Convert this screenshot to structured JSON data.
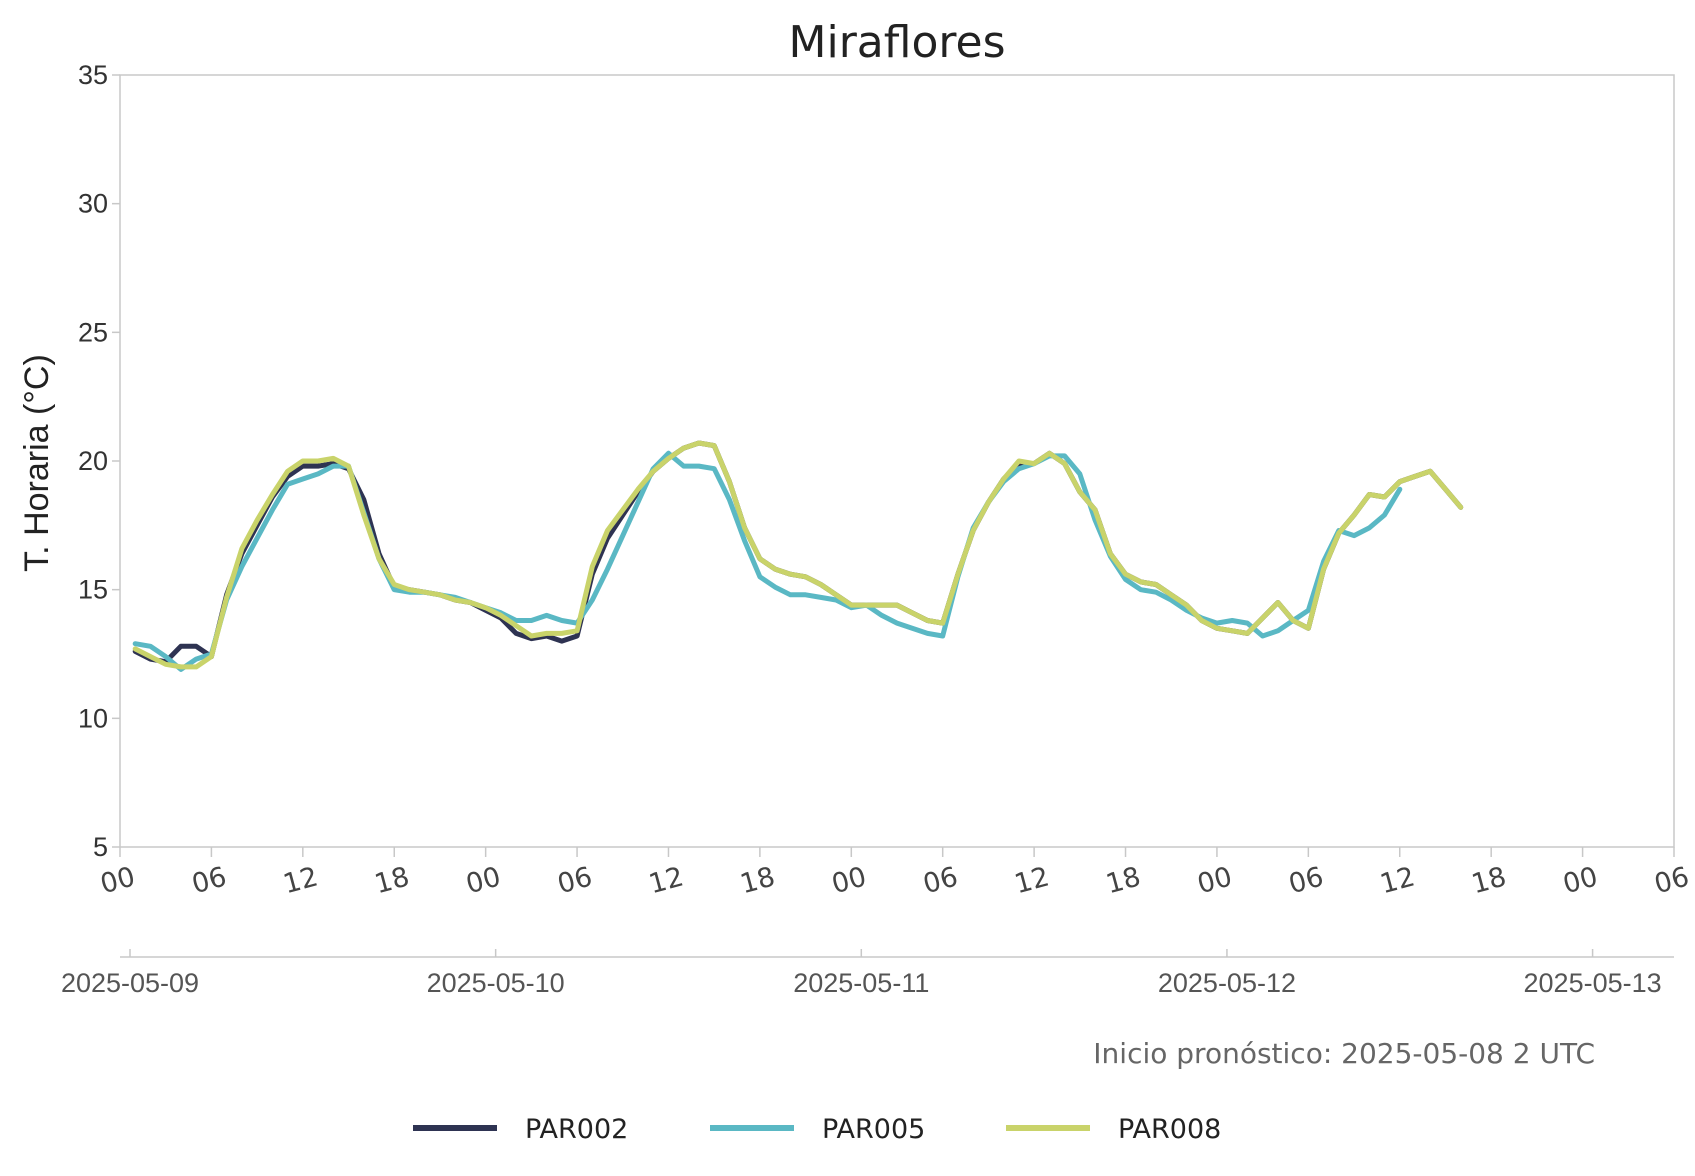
{
  "chart_data": {
    "type": "line",
    "title": "Miraflores",
    "ylabel": "T. Horaria (°C)",
    "ylim": [
      5,
      35
    ],
    "yticks": [
      "5",
      "10",
      "15",
      "20",
      "25",
      "30",
      "35"
    ],
    "xlim": [
      "2025-05-09T00",
      "2025-05-13T06"
    ],
    "x_hour_ticks": [
      "00",
      "06",
      "12",
      "18",
      "00",
      "06",
      "12",
      "18",
      "00",
      "06",
      "12",
      "18",
      "00",
      "06",
      "12",
      "18",
      "00",
      "06"
    ],
    "x_date_ticks": [
      "2025-05-09",
      "2025-05-10",
      "2025-05-11",
      "2025-05-12",
      "2025-05-13"
    ],
    "grid": false,
    "legend_position": "bottom",
    "annotation": "Inicio pronóstico: 2025-05-08 2 UTC",
    "series": [
      {
        "name": "PAR002",
        "color": "#2e3352",
        "start": "2025-05-09T01",
        "step_hours": 1,
        "values": [
          12.6,
          12.3,
          12.2,
          12.8,
          12.8,
          12.4,
          14.8,
          16.4,
          17.5,
          18.6,
          19.4,
          19.8,
          19.8,
          19.9,
          19.7,
          18.5,
          16.4,
          15.1,
          15.0,
          14.9,
          14.8,
          14.6,
          14.5,
          14.2,
          13.9,
          13.3,
          13.1,
          13.2,
          13.0,
          13.2,
          15.6,
          17.0,
          17.9,
          18.8,
          19.6,
          20.1,
          20.5,
          20.7,
          20.6,
          19.2,
          17.4,
          16.2,
          15.8,
          15.6,
          15.5,
          15.2,
          14.8,
          14.4,
          14.4,
          14.4,
          14.4,
          14.1,
          13.8,
          13.7,
          15.6,
          17.3,
          18.4,
          19.3,
          19.9,
          19.9,
          20.3,
          19.9,
          18.8,
          18.1,
          16.4,
          15.6,
          15.3,
          15.2,
          14.8,
          14.4,
          13.8,
          13.5,
          13.4,
          13.3,
          13.9,
          14.5,
          13.8,
          13.5,
          15.8,
          17.2,
          17.9,
          18.7,
          18.6,
          19.2,
          19.4,
          19.6,
          18.9,
          18.2
        ]
      },
      {
        "name": "PAR005",
        "color": "#5ab8c4",
        "start": "2025-05-09T01",
        "step_hours": 1,
        "values": [
          12.9,
          12.8,
          12.4,
          11.9,
          12.3,
          12.5,
          14.6,
          15.9,
          17.0,
          18.1,
          19.1,
          19.3,
          19.5,
          19.8,
          19.8,
          18.0,
          16.2,
          15.0,
          14.9,
          14.9,
          14.8,
          14.7,
          14.5,
          14.3,
          14.1,
          13.8,
          13.8,
          14.0,
          13.8,
          13.7,
          14.6,
          15.8,
          17.1,
          18.4,
          19.7,
          20.3,
          19.8,
          19.8,
          19.7,
          18.5,
          16.9,
          15.5,
          15.1,
          14.8,
          14.8,
          14.7,
          14.6,
          14.3,
          14.4,
          14.0,
          13.7,
          13.5,
          13.3,
          13.2,
          15.5,
          17.4,
          18.4,
          19.2,
          19.7,
          19.9,
          20.2,
          20.2,
          19.5,
          17.7,
          16.3,
          15.4,
          15.0,
          14.9,
          14.6,
          14.2,
          13.9,
          13.7,
          13.8,
          13.7,
          13.2,
          13.4,
          13.8,
          14.2,
          16.1,
          17.3,
          17.1,
          17.4,
          17.9,
          18.9
        ]
      },
      {
        "name": "PAR008",
        "color": "#c9d36a",
        "start": "2025-05-09T01",
        "step_hours": 1,
        "values": [
          12.7,
          12.4,
          12.1,
          12.0,
          12.0,
          12.4,
          14.7,
          16.6,
          17.7,
          18.7,
          19.6,
          20.0,
          20.0,
          20.1,
          19.8,
          17.9,
          16.2,
          15.2,
          15.0,
          14.9,
          14.8,
          14.6,
          14.5,
          14.3,
          14.0,
          13.6,
          13.2,
          13.3,
          13.3,
          13.4,
          15.9,
          17.3,
          18.1,
          18.9,
          19.6,
          20.1,
          20.5,
          20.7,
          20.6,
          19.2,
          17.4,
          16.2,
          15.8,
          15.6,
          15.5,
          15.2,
          14.8,
          14.4,
          14.4,
          14.4,
          14.4,
          14.1,
          13.8,
          13.7,
          15.6,
          17.3,
          18.4,
          19.3,
          20.0,
          19.9,
          20.3,
          19.9,
          18.8,
          18.1,
          16.4,
          15.6,
          15.3,
          15.2,
          14.8,
          14.4,
          13.8,
          13.5,
          13.4,
          13.3,
          13.9,
          14.5,
          13.8,
          13.5,
          15.8,
          17.2,
          17.9,
          18.7,
          18.6,
          19.2,
          19.4,
          19.6,
          18.9,
          18.2
        ]
      }
    ]
  }
}
